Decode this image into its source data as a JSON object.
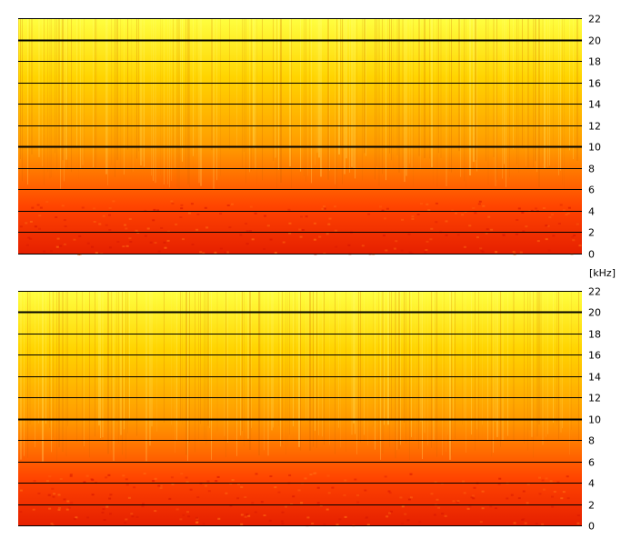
{
  "chart_data": [
    {
      "type": "heatmap",
      "channel": "upper",
      "ylabel": "",
      "unit_label": "[kHz]",
      "ylim": [
        0,
        22
      ],
      "y_ticks": [
        0,
        2,
        4,
        6,
        8,
        10,
        12,
        14,
        16,
        18,
        20,
        22
      ],
      "y_tick_labels": [
        "0",
        "2",
        "4",
        "6",
        "8",
        "10",
        "12",
        "14",
        "16",
        "18",
        "20",
        "22"
      ],
      "bold_gridlines_khz": [
        10,
        20
      ],
      "gridlines": true,
      "colormap": [
        "#ffff40",
        "#ffd400",
        "#ff9a00",
        "#ff4400",
        "#e62000"
      ]
    },
    {
      "type": "heatmap",
      "channel": "lower",
      "ylabel": "",
      "ylim": [
        0,
        22
      ],
      "y_ticks": [
        0,
        2,
        4,
        6,
        8,
        10,
        12,
        14,
        16,
        18,
        20,
        22
      ],
      "y_tick_labels": [
        "0",
        "2",
        "4",
        "6",
        "8",
        "10",
        "12",
        "14",
        "16",
        "18",
        "20",
        "22"
      ],
      "bold_gridlines_khz": [
        10,
        20
      ],
      "gridlines": true,
      "colormap": [
        "#ffff40",
        "#ffd400",
        "#ff9a00",
        "#ff4400",
        "#e62000"
      ]
    }
  ]
}
